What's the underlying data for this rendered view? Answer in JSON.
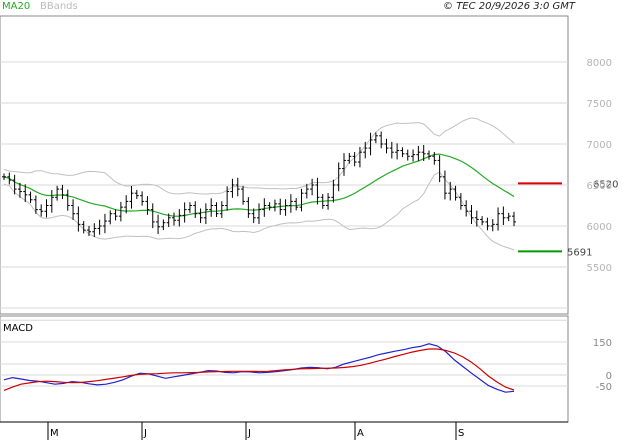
{
  "header": {
    "legend_ma": "MA20",
    "legend_bb": "BBands",
    "copyright": "© TEC 20/9/2026 3:0 GMT"
  },
  "colors": {
    "price_bar": "#000000",
    "ma20": "#22aa22",
    "bbands": "#c0c0c0",
    "resistance": "#dd0000",
    "support": "#009900",
    "macd": "#2222cc",
    "signal": "#cc0000",
    "grid": "#d8d8d8"
  },
  "chart_data": [
    {
      "type": "ohlc",
      "title": "",
      "y_ticks": [
        "8000",
        "7500",
        "7000",
        "6500",
        "6000",
        "5500"
      ],
      "ylim": [
        5000,
        8500
      ],
      "x_ticks": [
        "M",
        "J",
        "J",
        "A",
        "S"
      ],
      "levels": [
        {
          "label": "6520",
          "value": 6520,
          "role": "resistance"
        },
        {
          "label": "5691",
          "value": 5691,
          "role": "support"
        }
      ],
      "close_series": [
        6600,
        6560,
        6450,
        6420,
        6380,
        6320,
        6200,
        6180,
        6250,
        6350,
        6450,
        6380,
        6250,
        6150,
        6020,
        5950,
        5930,
        5970,
        6000,
        6060,
        6150,
        6120,
        6230,
        6300,
        6400,
        6370,
        6300,
        6200,
        6050,
        5990,
        6040,
        6100,
        6070,
        6130,
        6200,
        6250,
        6150,
        6100,
        6200,
        6250,
        6150,
        6250,
        6420,
        6500,
        6450,
        6300,
        6150,
        6100,
        6200,
        6250,
        6230,
        6270,
        6200,
        6250,
        6300,
        6230,
        6400,
        6450,
        6500,
        6350,
        6250,
        6350,
        6500,
        6700,
        6800,
        6850,
        6780,
        6900,
        6950,
        7050,
        7100,
        7000,
        6950,
        6900,
        6920,
        6880,
        6850,
        6870,
        6900,
        6880,
        6850,
        6800,
        6600,
        6400,
        6450,
        6350,
        6250,
        6180,
        6100,
        6080,
        6050,
        6000,
        6020,
        6150,
        6100,
        6120,
        6050
      ]
    },
    {
      "type": "line",
      "title": "MACD",
      "y_ticks": [
        "150",
        "0",
        "-50"
      ],
      "ylim": [
        -90,
        170
      ],
      "series": [
        {
          "name": "MACD",
          "values": [
            -22,
            -12,
            -18,
            -25,
            -28,
            -35,
            -42,
            -38,
            -30,
            -33,
            -40,
            -45,
            -42,
            -33,
            -22,
            -5,
            8,
            5,
            -5,
            -15,
            -8,
            -2,
            5,
            12,
            20,
            18,
            12,
            10,
            15,
            14,
            10,
            12,
            15,
            20,
            25,
            32,
            35,
            33,
            28,
            35,
            50,
            60,
            70,
            80,
            92,
            100,
            108,
            115,
            124,
            130,
            142,
            132,
            105,
            68,
            38,
            8,
            -20,
            -48,
            -65,
            -78,
            -74
          ]
        },
        {
          "values": [
            -70,
            -55,
            -42,
            -36,
            -30,
            -28,
            -30,
            -33,
            -35,
            -34,
            -30,
            -26,
            -20,
            -14,
            -8,
            -2,
            3,
            5,
            6,
            8,
            10,
            10,
            11,
            12,
            14,
            15,
            16,
            17,
            17,
            17,
            16,
            17,
            20,
            23,
            26,
            28,
            29,
            30,
            31,
            32,
            34,
            38,
            44,
            53,
            63,
            73,
            84,
            94,
            104,
            112,
            118,
            118,
            112,
            100,
            82,
            58,
            28,
            -5,
            -32,
            -55,
            -68
          ]
        }
      ]
    }
  ]
}
